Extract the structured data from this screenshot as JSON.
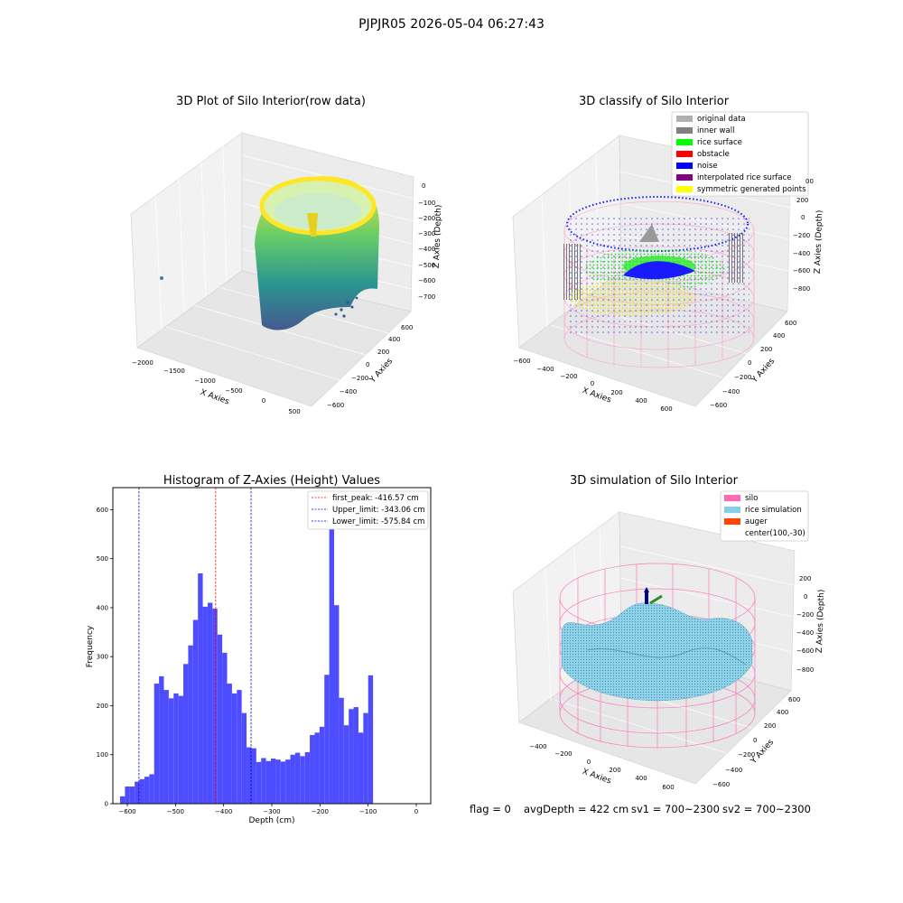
{
  "suptitle": "PJPJR05 2026-05-04 06:27:43",
  "colors": {
    "histogram_bar": "#4d4dff",
    "peak_line": "#ff0000",
    "limit_line": "#0000cc",
    "silo_wire": "#ff69b4",
    "rice_simulation": "#87ceeb",
    "auger": "#ff4500"
  },
  "footer": {
    "flag": "flag = 0",
    "avg_depth": "avgDepth = 422 cm",
    "sv1": "sv1 = 700~2300",
    "sv2": "sv2 = 700~2300"
  },
  "panels": {
    "raw": {
      "title": "3D Plot of Silo Interior(row data)",
      "xlabel": "X Axies",
      "ylabel": "Y Axies",
      "zlabel": "Z Axies (Depth)",
      "xticks": [
        "−2000",
        "−1500",
        "−1000",
        "−500",
        "0",
        "500"
      ],
      "yticks": [
        "−600",
        "−400",
        "−200",
        "0",
        "200",
        "400",
        "600"
      ],
      "zticks": [
        "0",
        "−100",
        "−200",
        "−300",
        "−400",
        "−500",
        "−600",
        "−700"
      ]
    },
    "classify": {
      "title": "3D classify of Silo Interior",
      "xlabel": "X Axies",
      "ylabel": "Y Axies",
      "zlabel": "Z Axies (Depth)",
      "xticks": [
        "−600",
        "−400",
        "−200",
        "0",
        "200",
        "400",
        "600"
      ],
      "yticks": [
        "−600",
        "−400",
        "−200",
        "0",
        "200",
        "400",
        "600"
      ],
      "zticks": [
        "200",
        "0",
        "−200",
        "−400",
        "−600",
        "−800"
      ],
      "ztick_top": "00",
      "legend": [
        {
          "label": "original data",
          "color": "#b0b0b0"
        },
        {
          "label": "inner wall",
          "color": "#808080"
        },
        {
          "label": "rice surface",
          "color": "#00ff00"
        },
        {
          "label": "obstacle",
          "color": "#ff0000"
        },
        {
          "label": "noise",
          "color": "#0000ff"
        },
        {
          "label": "interpolated rice surface",
          "color": "#800080"
        },
        {
          "label": "symmetric generated points",
          "color": "#ffff00"
        }
      ]
    },
    "simulation": {
      "title": "3D simulation of Silo Interior",
      "xlabel": "X Axies",
      "ylabel": "Y Axies",
      "zlabel": "Z Axies (Depth)",
      "xticks": [
        "−400",
        "−200",
        "0",
        "200",
        "400",
        "600"
      ],
      "yticks": [
        "−600",
        "−400",
        "−200",
        "0",
        "200",
        "400",
        "600"
      ],
      "zticks": [
        "200",
        "0",
        "−200",
        "−400",
        "−600",
        "−800"
      ],
      "legend": [
        {
          "label": "silo",
          "color": "#ff69b4"
        },
        {
          "label": "rice simulation",
          "color": "#87ceeb"
        },
        {
          "label": "auger",
          "color": "#ff4500"
        },
        {
          "label": "center(100,-30)",
          "color": ""
        }
      ]
    }
  },
  "chart_data": [
    {
      "type": "bar",
      "title": "Histogram of Z-Axies (Height) Values",
      "xlabel": "Depth (cm)",
      "ylabel": "Frequency",
      "xlim": [
        -630,
        30
      ],
      "ylim": [
        0,
        645
      ],
      "xticks": [
        -600,
        -500,
        -400,
        -300,
        -200,
        -100,
        0
      ],
      "xtick_labels": [
        "−600",
        "−500",
        "−400",
        "−300",
        "−200",
        "−100",
        "0"
      ],
      "yticks": [
        0,
        100,
        200,
        300,
        400,
        500,
        600
      ],
      "bin_start": -615,
      "bin_width": 10.1,
      "values": [
        15,
        35,
        35,
        45,
        50,
        55,
        60,
        245,
        260,
        232,
        215,
        225,
        220,
        285,
        323,
        375,
        470,
        402,
        410,
        398,
        345,
        308,
        245,
        225,
        232,
        185,
        115,
        113,
        85,
        93,
        87,
        92,
        90,
        86,
        90,
        100,
        104,
        97,
        105,
        140,
        145,
        157,
        263,
        615,
        405,
        216,
        160,
        193,
        197,
        145,
        185,
        262
      ],
      "vlines": [
        {
          "x": -416.57,
          "label": "first_peak: -416.57 cm",
          "color": "#ff0000"
        },
        {
          "x": -343.06,
          "label": "Upper_limit: -343.06 cm",
          "color": "#0000cc"
        },
        {
          "x": -575.84,
          "label": "Lower_limit: -575.84 cm",
          "color": "#0000cc"
        }
      ],
      "legend_position": "top-right"
    }
  ]
}
